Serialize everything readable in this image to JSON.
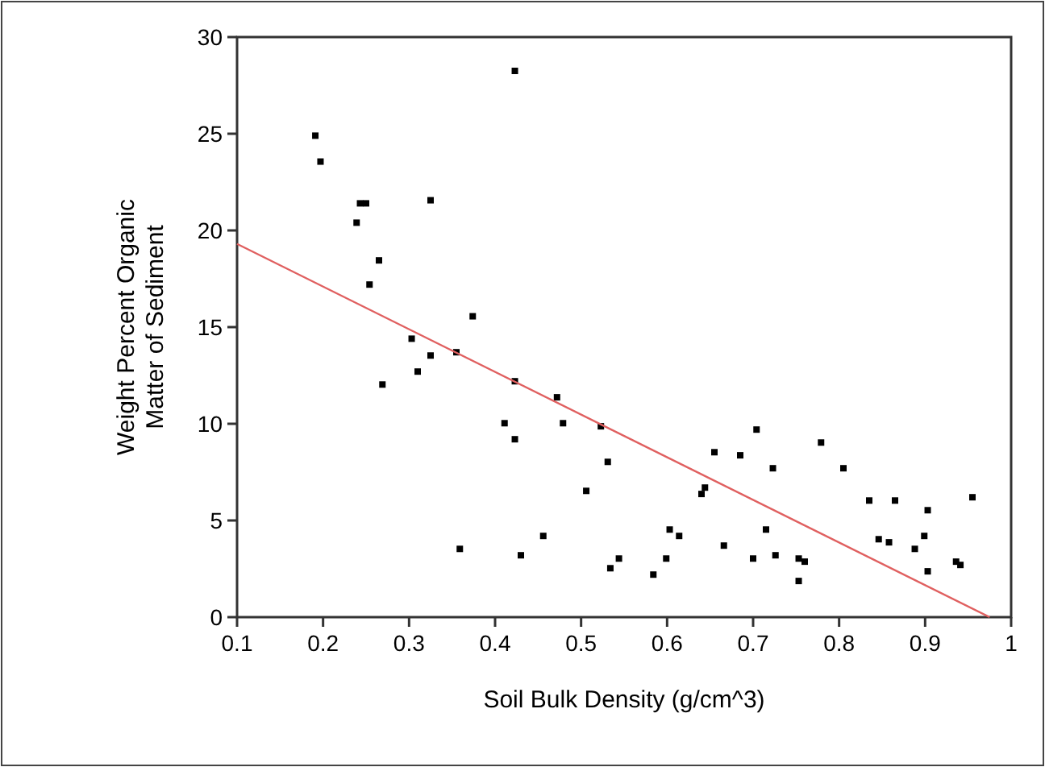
{
  "chart_data": {
    "type": "scatter",
    "xlabel": "Soil Bulk Density (g/cm^3)",
    "ylabel": "Weight Percent Organic\nMatter of Sediment",
    "xlim": [
      0.1,
      1
    ],
    "xticks": [
      0.1,
      0.2,
      0.3,
      0.4,
      0.5,
      0.6,
      0.7,
      0.8,
      0.9,
      {
        "value": 1,
        "label": "1"
      }
    ],
    "ylim": [
      0,
      30
    ],
    "yticks": [
      0,
      5,
      10,
      15,
      20,
      25,
      30
    ],
    "grid": false,
    "marker": "square",
    "series": [
      {
        "color": "#000000",
        "x": [
          0.423,
          0.191,
          0.197,
          0.243,
          0.25,
          0.325,
          0.239,
          0.265,
          0.254,
          0.374,
          0.303,
          0.325,
          0.355,
          0.31,
          0.269,
          0.423,
          0.472,
          0.411,
          0.479,
          0.523,
          0.423,
          0.531,
          0.506,
          0.359,
          0.456,
          0.43,
          0.534,
          0.704,
          0.655,
          0.685,
          0.779,
          0.723,
          0.805,
          0.644,
          0.64,
          0.835,
          0.865,
          0.903,
          0.955,
          0.603,
          0.614,
          0.715,
          0.666,
          0.846,
          0.858,
          0.899,
          0.888,
          0.544,
          0.599,
          0.7,
          0.726,
          0.753,
          0.76,
          0.584,
          0.753,
          0.903,
          0.936,
          0.941
        ],
        "values": [
          28.25,
          24.9,
          23.56,
          21.4,
          21.4,
          21.56,
          20.4,
          18.45,
          17.2,
          15.56,
          14.4,
          13.53,
          13.7,
          12.7,
          12.03,
          12.2,
          11.37,
          10.03,
          10.03,
          9.87,
          9.2,
          8.03,
          6.53,
          3.53,
          4.2,
          3.2,
          2.53,
          9.7,
          8.53,
          8.37,
          9.03,
          7.7,
          7.7,
          6.7,
          6.37,
          6.03,
          6.03,
          5.53,
          6.2,
          4.53,
          4.2,
          4.53,
          3.7,
          4.03,
          3.87,
          4.2,
          3.53,
          3.03,
          3.03,
          3.03,
          3.2,
          3.03,
          2.87,
          2.2,
          1.87,
          2.37,
          2.87,
          2.7
        ]
      },
      {
        "type": "line",
        "color": "#e06060",
        "line_style": "solid",
        "marker": "none",
        "x": [
          0.1,
          0.975
        ],
        "values": [
          19.3,
          0
        ]
      }
    ]
  }
}
